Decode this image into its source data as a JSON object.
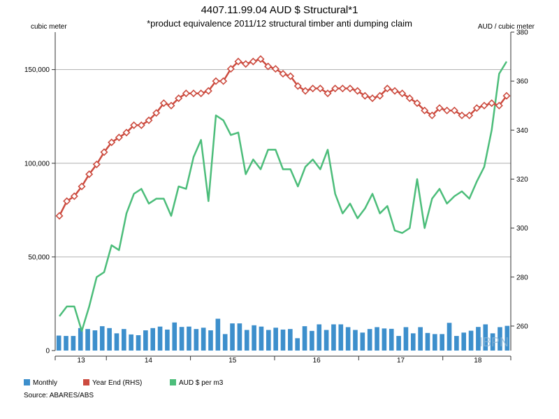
{
  "colors": {
    "monthly": "#3d8fcc",
    "year_end": "#cc4b3f",
    "aud": "#4cbd7a",
    "grid": "#b0b0b0",
    "axis": "#333333"
  },
  "chart_data": {
    "type": "bar",
    "title": "4407.11.99.04 AUD $ Structural*1",
    "subtitle": "*product equivalence 2011/12 structural timber anti dumping claim",
    "ylabel_left": "cubic meter",
    "ylabel_right": "AUD / cubic meter",
    "source": "Source: ABARES/ABS",
    "watermark": "IBPN",
    "left_axis": {
      "min": 0,
      "max": 170000,
      "ticks": [
        0,
        50000,
        100000,
        150000
      ],
      "tick_labels": [
        "0",
        "50,000",
        "100,000",
        "150,000"
      ],
      "grid": true
    },
    "right_axis": {
      "min": 250,
      "max": 380,
      "ticks": [
        260,
        280,
        300,
        320,
        340,
        360,
        380
      ],
      "tick_labels": [
        "260",
        "280",
        "300",
        "320",
        "340",
        "360",
        "380"
      ]
    },
    "x_axis": {
      "start": 0,
      "end": 65,
      "year_boundaries": [
        0,
        7.3,
        19.3,
        31.3,
        43.3,
        55.3,
        65
      ],
      "year_labels": [
        {
          "label": "13",
          "at": 3.7
        },
        {
          "label": "14",
          "at": 13.3
        },
        {
          "label": "15",
          "at": 25.3
        },
        {
          "label": "16",
          "at": 37.3
        },
        {
          "label": "17",
          "at": 49.3
        },
        {
          "label": "18",
          "at": 60.3
        }
      ]
    },
    "legend": {
      "placement": "bottom-left",
      "items": [
        {
          "label": "Monthly",
          "color_key": "monthly"
        },
        {
          "label": "Year End (RHS)",
          "color_key": "year_end"
        },
        {
          "label": "AUD $ per m3",
          "color_key": "aud"
        }
      ]
    },
    "series": [
      {
        "name": "Monthly",
        "type": "bar",
        "axis": "left",
        "values": [
          8000,
          7800,
          7800,
          12000,
          11500,
          10800,
          13000,
          12000,
          9200,
          11500,
          8600,
          8200,
          10800,
          12000,
          12800,
          11200,
          15000,
          12600,
          12800,
          11500,
          12200,
          10800,
          17000,
          8800,
          14500,
          14500,
          11000,
          13500,
          12800,
          11000,
          12200,
          11200,
          11500,
          6600,
          13000,
          10500,
          14000,
          11000,
          14000,
          14000,
          12500,
          11000,
          9600,
          11500,
          12500,
          11800,
          11600,
          7800,
          12500,
          9200,
          12500,
          9400,
          8800,
          8800,
          14800,
          7800,
          9600,
          10600,
          12600,
          14000,
          9200,
          12500,
          13200
        ]
      },
      {
        "name": "Year End (RHS)",
        "type": "line",
        "axis": "right",
        "values": [
          305,
          311,
          313,
          317,
          322,
          326,
          331,
          335,
          337,
          339,
          342,
          342,
          344,
          347,
          351,
          350,
          353,
          355,
          355,
          355,
          356,
          360,
          360,
          365,
          368,
          367,
          368,
          369,
          366,
          365,
          363,
          362,
          358,
          356,
          357,
          357,
          355,
          357,
          357,
          357,
          356,
          354,
          353,
          354,
          357,
          356,
          355,
          353,
          351,
          348,
          346,
          349,
          348,
          348,
          346,
          346,
          349,
          350,
          351,
          350,
          354
        ]
      },
      {
        "name": "AUD $ per m3",
        "type": "line",
        "axis": "right",
        "values": [
          264,
          268,
          268,
          258,
          268,
          280,
          282,
          293,
          291,
          306,
          314,
          316,
          310,
          312,
          312,
          305,
          317,
          316,
          329,
          336,
          311,
          346,
          344,
          338,
          339,
          322,
          328,
          324,
          332,
          332,
          324,
          324,
          317,
          325,
          328,
          324,
          332,
          314,
          306,
          310,
          304,
          308,
          314,
          306,
          309,
          299,
          298,
          300,
          320,
          300,
          312,
          316,
          310,
          313,
          315,
          312,
          319,
          325,
          340,
          363,
          368
        ]
      }
    ]
  }
}
